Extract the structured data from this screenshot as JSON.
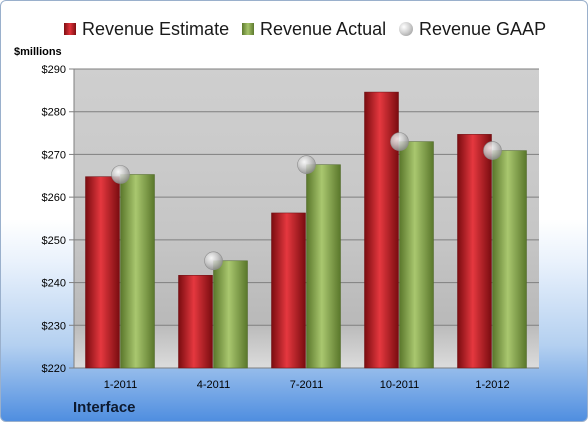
{
  "legend": {
    "estimate": "Revenue Estimate",
    "actual": "Revenue Actual",
    "gaap": "Revenue GAAP"
  },
  "unit_label": "$millions",
  "brand_label": "Interface",
  "colors": {
    "estimate": "#c8141e",
    "actual": "#8aa84e",
    "gaap": "#b8b8b8"
  },
  "chart_data": {
    "type": "bar",
    "categories": [
      "1-2011",
      "4-2011",
      "7-2011",
      "10-2011",
      "1-2012"
    ],
    "series": [
      {
        "name": "Revenue Estimate",
        "values": [
          264.8,
          241.7,
          256.3,
          284.6,
          274.7
        ]
      },
      {
        "name": "Revenue Actual",
        "values": [
          265.3,
          245.1,
          267.6,
          273.0,
          270.9
        ]
      },
      {
        "name": "Revenue GAAP",
        "type": "scatter",
        "values": [
          265.3,
          245.1,
          267.6,
          273.0,
          270.9
        ]
      }
    ],
    "ylabel": "$millions",
    "ylim": [
      220,
      290
    ],
    "yticks": [
      220,
      230,
      240,
      250,
      260,
      270,
      280,
      290
    ],
    "ytick_labels": [
      "$220",
      "$230",
      "$240",
      "$250",
      "$260",
      "$270",
      "$280",
      "$290"
    ],
    "grid": true,
    "legend_position": "top"
  }
}
